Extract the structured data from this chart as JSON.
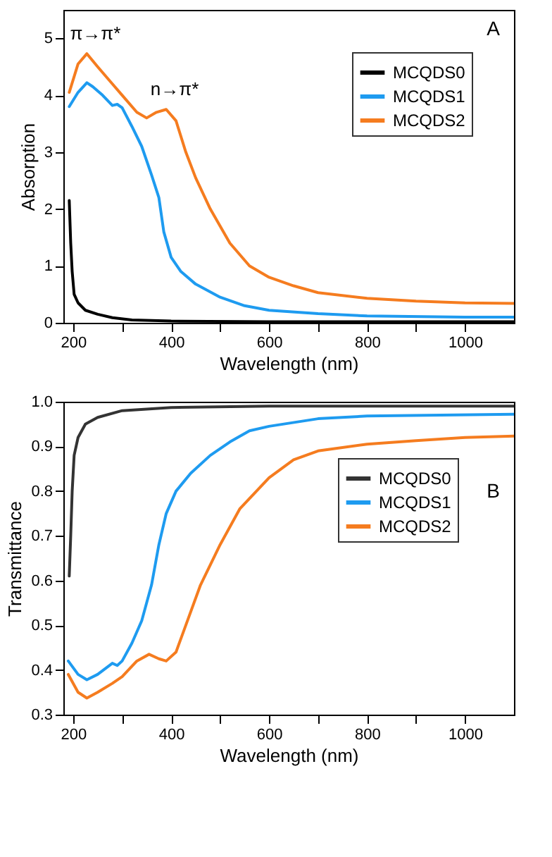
{
  "chart_data": [
    {
      "type": "line",
      "xlabel": "Wavelength (nm)",
      "ylabel": "Absorption",
      "xlim": [
        180,
        1100
      ],
      "ylim": [
        0,
        5.5
      ],
      "xticks": [
        200,
        {
          "value": 300,
          "label": null
        },
        400,
        {
          "value": 500,
          "label": null
        },
        600,
        {
          "value": 700,
          "label": null
        },
        800,
        {
          "value": 900,
          "label": null
        },
        1000
      ],
      "yticks": [
        0,
        1,
        2,
        3,
        4,
        5
      ],
      "grid": false,
      "legend": "top right",
      "marker": "none",
      "line_style": "solid",
      "annotations": [
        {
          "text": "π→π*",
          "x": 228,
          "y": 4.73
        },
        {
          "text": "n→π*",
          "x": 390,
          "y": 3.75
        },
        "A"
      ],
      "series": [
        {
          "name": "MCQDS0",
          "color": "#000000",
          "x": [
            192,
            195,
            198,
            202,
            210,
            225,
            250,
            280,
            320,
            400,
            600,
            1100
          ],
          "values": [
            2.15,
            1.4,
            0.9,
            0.5,
            0.35,
            0.22,
            0.15,
            0.09,
            0.05,
            0.03,
            0.02,
            0.02
          ]
        },
        {
          "name": "MCQDS1",
          "color": "#1e9bf0",
          "x": [
            192,
            210,
            228,
            240,
            260,
            280,
            290,
            300,
            320,
            340,
            360,
            375,
            385,
            400,
            420,
            450,
            500,
            550,
            600,
            700,
            800,
            1000,
            1100
          ],
          "values": [
            3.8,
            4.05,
            4.22,
            4.15,
            4.0,
            3.82,
            3.84,
            3.78,
            3.45,
            3.1,
            2.6,
            2.2,
            1.6,
            1.15,
            0.9,
            0.68,
            0.45,
            0.3,
            0.22,
            0.16,
            0.12,
            0.1,
            0.1
          ]
        },
        {
          "name": "MCQDS2",
          "color": "#f57c1f",
          "x": [
            192,
            210,
            228,
            250,
            280,
            300,
            330,
            350,
            370,
            390,
            410,
            430,
            450,
            480,
            520,
            560,
            600,
            650,
            700,
            800,
            900,
            1000,
            1100
          ],
          "values": [
            4.05,
            4.55,
            4.73,
            4.5,
            4.2,
            4.0,
            3.7,
            3.6,
            3.7,
            3.75,
            3.55,
            3.0,
            2.55,
            2.0,
            1.4,
            1.0,
            0.8,
            0.65,
            0.53,
            0.43,
            0.38,
            0.35,
            0.34
          ]
        }
      ]
    },
    {
      "type": "line",
      "xlabel": "Wavelength (nm)",
      "ylabel": "Transmittance",
      "xlim": [
        180,
        1100
      ],
      "ylim": [
        0.3,
        1.0
      ],
      "xticks": [
        200,
        {
          "value": 300,
          "label": null
        },
        400,
        {
          "value": 500,
          "label": null
        },
        600,
        {
          "value": 700,
          "label": null
        },
        800,
        {
          "value": 900,
          "label": null
        },
        1000
      ],
      "yticks": [
        0.3,
        0.4,
        0.5,
        0.6,
        0.7,
        0.8,
        0.9,
        {
          "value": 1.0,
          "label": "1.0"
        }
      ],
      "grid": false,
      "legend": "top right",
      "marker": "none",
      "line_style": "solid",
      "annotations": [
        "B"
      ],
      "series": [
        {
          "name": "MCQDS0",
          "color": "#333333",
          "x": [
            192,
            195,
            198,
            202,
            210,
            225,
            250,
            300,
            400,
            600,
            1100
          ],
          "values": [
            0.61,
            0.7,
            0.8,
            0.88,
            0.92,
            0.95,
            0.965,
            0.98,
            0.987,
            0.99,
            0.99
          ]
        },
        {
          "name": "MCQDS1",
          "color": "#1e9bf0",
          "x": [
            190,
            210,
            228,
            250,
            280,
            290,
            300,
            320,
            340,
            360,
            375,
            390,
            410,
            440,
            480,
            520,
            560,
            600,
            700,
            800,
            1100
          ],
          "values": [
            0.42,
            0.39,
            0.378,
            0.39,
            0.415,
            0.41,
            0.42,
            0.46,
            0.51,
            0.59,
            0.68,
            0.75,
            0.8,
            0.84,
            0.88,
            0.91,
            0.935,
            0.945,
            0.962,
            0.968,
            0.972
          ]
        },
        {
          "name": "MCQDS2",
          "color": "#f57c1f",
          "x": [
            190,
            210,
            228,
            250,
            280,
            300,
            330,
            355,
            375,
            390,
            410,
            430,
            460,
            500,
            540,
            600,
            650,
            700,
            800,
            900,
            1000,
            1100
          ],
          "values": [
            0.39,
            0.35,
            0.337,
            0.35,
            0.37,
            0.385,
            0.42,
            0.435,
            0.425,
            0.42,
            0.44,
            0.5,
            0.59,
            0.68,
            0.76,
            0.83,
            0.87,
            0.89,
            0.905,
            0.913,
            0.92,
            0.923
          ]
        }
      ]
    }
  ]
}
